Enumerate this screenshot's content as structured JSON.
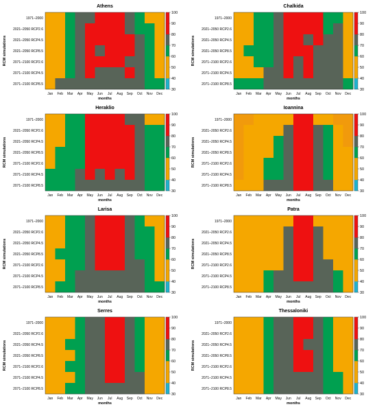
{
  "colors": {
    "30-40": "#1fb3cf",
    "40-50": "#f5a700",
    "50-60": "#f5a700",
    "60-70": "#00a050",
    "70-80": "#586458",
    "80-90": "#ee1111",
    "90-100": "#ee1111"
  },
  "chart_data": [
    {
      "type": "heatmap",
      "title": "Athens",
      "xlabel": "months",
      "ylabel": "RCM simulations",
      "categories": [
        "Jan",
        "Feb",
        "Mar",
        "Apr",
        "May",
        "Jun",
        "Jul",
        "Aug",
        "Sep",
        "Oct",
        "Nov",
        "Dec"
      ],
      "rows": [
        "1971–2000",
        "2021–2050 RCP2.6",
        "2021–2050 RCP4.5",
        "2021–2050 RCP8.5",
        "2071–2100 RCP2.6",
        "2071–2100 RCP4.5",
        "2071–2100 RCP8.5"
      ],
      "zlim": [
        30,
        100
      ],
      "colorbar_ticks": [
        30,
        40,
        50,
        60,
        70,
        80,
        90,
        100
      ],
      "values": [
        [
          55,
          55,
          65,
          75,
          75,
          95,
          95,
          95,
          75,
          65,
          55,
          55
        ],
        [
          55,
          55,
          65,
          75,
          95,
          95,
          95,
          95,
          75,
          65,
          65,
          55
        ],
        [
          55,
          55,
          65,
          75,
          95,
          95,
          95,
          95,
          95,
          75,
          65,
          55
        ],
        [
          55,
          55,
          65,
          75,
          95,
          75,
          95,
          95,
          95,
          75,
          65,
          55
        ],
        [
          55,
          55,
          65,
          75,
          95,
          95,
          95,
          95,
          75,
          75,
          65,
          55
        ],
        [
          55,
          55,
          65,
          75,
          95,
          75,
          75,
          75,
          95,
          75,
          65,
          55
        ],
        [
          55,
          75,
          75,
          75,
          75,
          75,
          75,
          75,
          75,
          75,
          65,
          65
        ]
      ]
    },
    {
      "type": "heatmap",
      "title": "Chalkida",
      "xlabel": "months",
      "ylabel": "RCM simulations",
      "categories": [
        "Jan",
        "Feb",
        "Mar",
        "Apr",
        "May",
        "Jun",
        "Jul",
        "Aug",
        "Sep",
        "Oct",
        "Nov",
        "Dec"
      ],
      "rows": [
        "1971–2000",
        "2021–2050 RCP2.6",
        "2021–2050 RCP4.5",
        "2021–2050 RCP8.5",
        "2071–2100 RCP2.6",
        "2071–2100 RCP4.5",
        "2071–2100 RCP8.5"
      ],
      "zlim": [
        30,
        100
      ],
      "colorbar_ticks": [
        30,
        40,
        50,
        60,
        70,
        80,
        90,
        100
      ],
      "values": [
        [
          55,
          55,
          65,
          65,
          75,
          95,
          95,
          95,
          95,
          65,
          65,
          55
        ],
        [
          55,
          55,
          65,
          65,
          75,
          95,
          95,
          95,
          95,
          65,
          75,
          55
        ],
        [
          55,
          55,
          65,
          65,
          75,
          95,
          95,
          75,
          95,
          75,
          75,
          55
        ],
        [
          55,
          65,
          65,
          65,
          75,
          95,
          95,
          95,
          75,
          75,
          75,
          55
        ],
        [
          55,
          55,
          65,
          65,
          75,
          95,
          75,
          95,
          75,
          75,
          75,
          55
        ],
        [
          55,
          55,
          55,
          75,
          75,
          95,
          75,
          95,
          75,
          75,
          75,
          55
        ],
        [
          65,
          65,
          65,
          75,
          75,
          75,
          75,
          75,
          75,
          75,
          75,
          65
        ]
      ]
    },
    {
      "type": "heatmap",
      "title": "Heraklio",
      "xlabel": "months",
      "ylabel": "RCM simulations",
      "categories": [
        "Jan",
        "Feb",
        "Mar",
        "Apr",
        "May",
        "Jun",
        "Jul",
        "Aug",
        "Sep",
        "Oct",
        "Nov",
        "Dec"
      ],
      "rows": [
        "1971–2000",
        "2021–2050 RCP2.6",
        "2021–2050 RCP4.5",
        "2021–2050 RCP8.5",
        "2071–2100 RCP2.6",
        "2071–2100 RCP4.5",
        "2071–2100 RCP8.5"
      ],
      "zlim": [
        30,
        100
      ],
      "colorbar_ticks": [
        30,
        40,
        50,
        60,
        70,
        80,
        90,
        100
      ],
      "values": [
        [
          55,
          55,
          65,
          65,
          95,
          95,
          95,
          95,
          75,
          75,
          55,
          55
        ],
        [
          55,
          55,
          65,
          65,
          95,
          95,
          95,
          95,
          95,
          75,
          65,
          65
        ],
        [
          55,
          55,
          65,
          65,
          95,
          95,
          95,
          95,
          95,
          75,
          65,
          65
        ],
        [
          55,
          65,
          65,
          65,
          95,
          95,
          95,
          95,
          95,
          75,
          65,
          65
        ],
        [
          55,
          65,
          65,
          65,
          95,
          95,
          95,
          95,
          95,
          75,
          65,
          65
        ],
        [
          65,
          65,
          65,
          75,
          95,
          75,
          95,
          75,
          95,
          75,
          65,
          65
        ],
        [
          65,
          65,
          65,
          75,
          75,
          75,
          75,
          75,
          75,
          75,
          65,
          65
        ]
      ]
    },
    {
      "type": "heatmap",
      "title": "Ioannina",
      "xlabel": "months",
      "ylabel": "RCM simulations",
      "categories": [
        "Jan",
        "Feb",
        "Mar",
        "Apr",
        "May",
        "Jun",
        "Jul",
        "Aug",
        "Sep",
        "Oct",
        "Nov",
        "Dec"
      ],
      "rows": [
        "1971–2000",
        "2021–2050 RCP2.6",
        "2021–2050 RCP4.5",
        "2021–2050 RCP8.5",
        "2071–2100 RCP2.6",
        "2071–2100 RCP4.5",
        "2071–2100 RCP8.5"
      ],
      "zlim": [
        30,
        100
      ],
      "colorbar_ticks": [
        30,
        40,
        50,
        60,
        70,
        80,
        90,
        100
      ],
      "values": [
        [
          58,
          58,
          55,
          55,
          55,
          55,
          95,
          95,
          55,
          55,
          58,
          58
        ],
        [
          58,
          55,
          55,
          55,
          55,
          75,
          95,
          95,
          75,
          65,
          55,
          58
        ],
        [
          58,
          55,
          55,
          55,
          65,
          75,
          95,
          95,
          75,
          65,
          55,
          58
        ],
        [
          58,
          55,
          55,
          55,
          65,
          75,
          95,
          95,
          75,
          65,
          55,
          55
        ],
        [
          58,
          55,
          55,
          65,
          65,
          75,
          95,
          95,
          75,
          65,
          55,
          55
        ],
        [
          58,
          55,
          55,
          65,
          65,
          75,
          95,
          95,
          75,
          65,
          55,
          55
        ],
        [
          55,
          55,
          55,
          75,
          75,
          75,
          95,
          95,
          75,
          75,
          55,
          55
        ]
      ]
    },
    {
      "type": "heatmap",
      "title": "Larisa",
      "xlabel": "months",
      "ylabel": "RCM simulations",
      "categories": [
        "Jan",
        "Feb",
        "Mar",
        "Apr",
        "May",
        "Jun",
        "Jul",
        "Aug",
        "Sep",
        "Oct",
        "Nov",
        "Dec"
      ],
      "rows": [
        "1971–2000",
        "2021–2050 RCP2.6",
        "2021–2050 RCP4.5",
        "2021–2050 RCP8.5",
        "2071–2100 RCP2.6",
        "2071–2100 RCP4.5",
        "2071–2100 RCP8.5"
      ],
      "zlim": [
        30,
        100
      ],
      "colorbar_ticks": [
        30,
        40,
        50,
        60,
        70,
        80,
        90,
        100
      ],
      "values": [
        [
          55,
          55,
          65,
          65,
          75,
          95,
          95,
          95,
          75,
          65,
          55,
          55
        ],
        [
          55,
          55,
          65,
          65,
          75,
          95,
          95,
          95,
          75,
          65,
          65,
          55
        ],
        [
          55,
          55,
          65,
          65,
          75,
          95,
          95,
          95,
          75,
          65,
          65,
          55
        ],
        [
          55,
          65,
          65,
          65,
          75,
          95,
          95,
          95,
          75,
          65,
          65,
          55
        ],
        [
          55,
          55,
          65,
          65,
          75,
          95,
          95,
          95,
          75,
          75,
          65,
          55
        ],
        [
          55,
          55,
          65,
          75,
          75,
          75,
          75,
          75,
          75,
          75,
          65,
          55
        ],
        [
          55,
          65,
          65,
          75,
          75,
          75,
          75,
          75,
          75,
          75,
          65,
          65
        ]
      ]
    },
    {
      "type": "heatmap",
      "title": "Patra",
      "xlabel": "months",
      "ylabel": "RCM simulations",
      "categories": [
        "Jan",
        "Feb",
        "Mar",
        "Apr",
        "May",
        "Jun",
        "Jul",
        "Aug",
        "Sep",
        "Oct",
        "Nov",
        "Dec"
      ],
      "rows": [
        "1971–2000",
        "2021–2050 RCP2.6",
        "2021–2050 RCP4.5",
        "2021–2050 RCP8.5",
        "2071–2100 RCP2.6",
        "2071–2100 RCP4.5",
        "2071–2100 RCP8.5"
      ],
      "zlim": [
        30,
        100
      ],
      "colorbar_ticks": [
        30,
        40,
        50,
        60,
        70,
        80,
        90,
        100
      ],
      "values": [
        [
          55,
          55,
          55,
          55,
          55,
          55,
          95,
          95,
          55,
          55,
          55,
          55
        ],
        [
          55,
          55,
          55,
          55,
          55,
          75,
          95,
          95,
          75,
          55,
          55,
          55
        ],
        [
          55,
          55,
          55,
          55,
          55,
          75,
          95,
          95,
          75,
          55,
          55,
          55
        ],
        [
          55,
          55,
          55,
          55,
          55,
          75,
          95,
          95,
          75,
          55,
          55,
          55
        ],
        [
          55,
          55,
          55,
          55,
          55,
          75,
          95,
          95,
          75,
          75,
          55,
          55
        ],
        [
          55,
          55,
          55,
          65,
          75,
          75,
          95,
          95,
          75,
          75,
          65,
          55
        ],
        [
          55,
          55,
          55,
          65,
          75,
          75,
          75,
          75,
          75,
          75,
          65,
          55
        ]
      ]
    },
    {
      "type": "heatmap",
      "title": "Serres",
      "xlabel": "months",
      "ylabel": "RCM simulations",
      "categories": [
        "Jan",
        "Feb",
        "Mar",
        "Apr",
        "May",
        "Jun",
        "Jul",
        "Aug",
        "Sep",
        "Oct",
        "Nov",
        "Dec"
      ],
      "rows": [
        "1971–2000",
        "2021–2050 RCP2.6",
        "2021–2050 RCP4.5",
        "2021–2050 RCP8.5",
        "2071–2100 RCP2.6",
        "2071–2100 RCP4.5",
        "2071–2100 RCP8.5"
      ],
      "zlim": [
        30,
        100
      ],
      "colorbar_ticks": [
        30,
        40,
        50,
        60,
        70,
        80,
        90,
        100
      ],
      "values": [
        [
          55,
          55,
          55,
          65,
          75,
          75,
          95,
          95,
          75,
          65,
          55,
          55
        ],
        [
          55,
          55,
          55,
          65,
          75,
          75,
          95,
          95,
          75,
          65,
          55,
          55
        ],
        [
          55,
          55,
          65,
          65,
          75,
          75,
          95,
          95,
          75,
          65,
          55,
          55
        ],
        [
          55,
          55,
          55,
          65,
          75,
          75,
          95,
          95,
          75,
          65,
          55,
          55
        ],
        [
          55,
          55,
          65,
          65,
          75,
          75,
          95,
          95,
          75,
          65,
          55,
          55
        ],
        [
          55,
          55,
          55,
          65,
          75,
          75,
          95,
          95,
          75,
          75,
          55,
          55
        ],
        [
          55,
          55,
          65,
          65,
          75,
          75,
          75,
          75,
          75,
          75,
          55,
          55
        ]
      ]
    },
    {
      "type": "heatmap",
      "title": "Thessaloniki",
      "xlabel": "months",
      "ylabel": "RCM simulations",
      "categories": [
        "Jan",
        "Feb",
        "Mar",
        "Apr",
        "May",
        "Jun",
        "Jul",
        "Aug",
        "Sep",
        "Oct",
        "Nov",
        "Dec"
      ],
      "rows": [
        "1971–2000",
        "2021–2050 RCP2.6",
        "2021–2050 RCP4.5",
        "2021–2050 RCP8.5",
        "2071–2100 RCP2.6",
        "2071–2100 RCP4.5",
        "2071–2100 RCP8.5"
      ],
      "zlim": [
        30,
        100
      ],
      "colorbar_ticks": [
        30,
        40,
        50,
        60,
        70,
        80,
        90,
        100
      ],
      "values": [
        [
          55,
          55,
          55,
          65,
          75,
          75,
          95,
          95,
          75,
          65,
          55,
          55
        ],
        [
          55,
          55,
          55,
          65,
          75,
          75,
          95,
          95,
          75,
          65,
          55,
          55
        ],
        [
          55,
          55,
          55,
          65,
          75,
          75,
          95,
          75,
          75,
          65,
          55,
          55
        ],
        [
          55,
          55,
          55,
          65,
          75,
          75,
          95,
          95,
          75,
          65,
          55,
          55
        ],
        [
          55,
          55,
          55,
          65,
          75,
          75,
          95,
          95,
          75,
          65,
          55,
          55
        ],
        [
          55,
          55,
          55,
          65,
          75,
          75,
          75,
          75,
          75,
          65,
          65,
          55
        ],
        [
          55,
          55,
          55,
          65,
          75,
          75,
          75,
          75,
          75,
          65,
          65,
          55
        ]
      ]
    }
  ]
}
